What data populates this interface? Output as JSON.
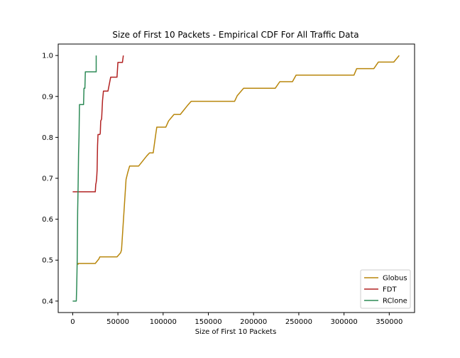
{
  "chart_data": {
    "type": "line",
    "title": "Size of First 10 Packets - Empirical CDF For All Traffic Data",
    "xlabel": "Size of First 10 Packets",
    "ylabel": "",
    "xlim": [
      -16000,
      378000
    ],
    "ylim": [
      0.372,
      1.028
    ],
    "xticks": [
      0,
      50000,
      100000,
      150000,
      200000,
      250000,
      300000,
      350000
    ],
    "xtick_labels": [
      "0",
      "50000",
      "100000",
      "150000",
      "200000",
      "250000",
      "300000",
      "350000"
    ],
    "yticks": [
      0.4,
      0.5,
      0.6,
      0.7,
      0.8,
      0.9,
      1.0
    ],
    "ytick_labels": [
      "0.4",
      "0.5",
      "0.6",
      "0.7",
      "0.8",
      "0.9",
      "1.0"
    ],
    "grid": false,
    "legend_position": "bottom-right",
    "series": [
      {
        "name": "Globus",
        "color": "#b8860b",
        "x": [
          5500,
          6000,
          6000,
          25000,
          29000,
          30000,
          49000,
          53000,
          54000,
          59000,
          61000,
          63000,
          73000,
          82000,
          85000,
          89000,
          92000,
          93000,
          103000,
          106000,
          112000,
          119000,
          127000,
          131000,
          179000,
          182000,
          189000,
          224000,
          229000,
          243000,
          247000,
          311000,
          314000,
          333000,
          338000,
          355000,
          361000
        ],
        "y": [
          0.49,
          0.49,
          0.492,
          0.492,
          0.503,
          0.508,
          0.508,
          0.518,
          0.525,
          0.697,
          0.715,
          0.73,
          0.73,
          0.755,
          0.762,
          0.762,
          0.81,
          0.825,
          0.825,
          0.84,
          0.856,
          0.856,
          0.878,
          0.888,
          0.888,
          0.902,
          0.92,
          0.92,
          0.936,
          0.936,
          0.952,
          0.952,
          0.968,
          0.968,
          0.984,
          0.984,
          1.0
        ]
      },
      {
        "name": "FDT",
        "color": "#b22222",
        "x": [
          0,
          25000,
          25500,
          26000,
          26500,
          27000,
          27500,
          28000,
          30000,
          30500,
          31000,
          32000,
          33000,
          34000,
          36000,
          39000,
          42000,
          42500,
          49000,
          50000,
          55000,
          56000
        ],
        "y": [
          0.667,
          0.667,
          0.685,
          0.69,
          0.7,
          0.72,
          0.78,
          0.807,
          0.807,
          0.81,
          0.84,
          0.845,
          0.89,
          0.913,
          0.913,
          0.913,
          0.947,
          0.947,
          0.947,
          0.983,
          0.983,
          1.0
        ]
      },
      {
        "name": "RClone",
        "color": "#2e8b57",
        "x": [
          0,
          4000,
          4500,
          5000,
          5500,
          6000,
          6500,
          7000,
          7500,
          8000,
          12000,
          12500,
          13500,
          14000,
          15000,
          24000,
          26000,
          26000
        ],
        "y": [
          0.4,
          0.4,
          0.44,
          0.5,
          0.62,
          0.68,
          0.76,
          0.8,
          0.88,
          0.88,
          0.88,
          0.92,
          0.92,
          0.96,
          0.96,
          0.96,
          0.96,
          1.0
        ]
      }
    ]
  }
}
